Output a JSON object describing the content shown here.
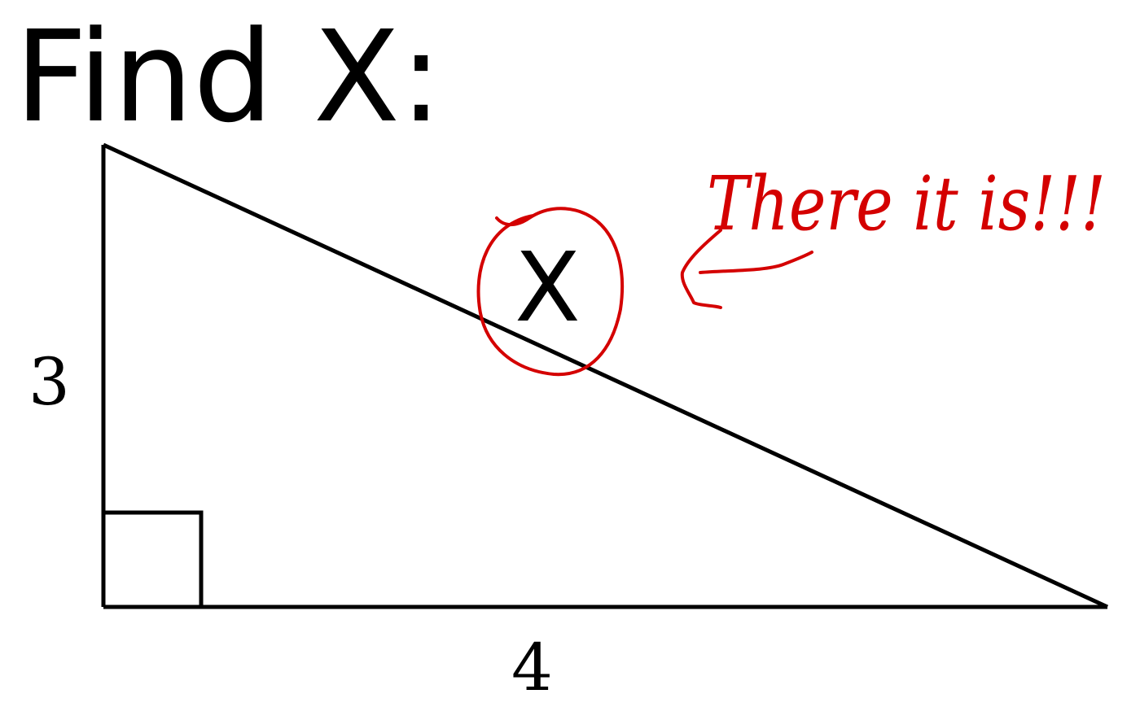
{
  "title": "Find X:",
  "triangle": {
    "vertical_side_label": "3",
    "horizontal_side_label": "4",
    "unknown_label": "X",
    "right_angle": true
  },
  "annotation": {
    "text": "There it is!!!",
    "color": "#d40000"
  },
  "colors": {
    "lines": "#000000",
    "background": "#ffffff",
    "annotation": "#d40000"
  }
}
